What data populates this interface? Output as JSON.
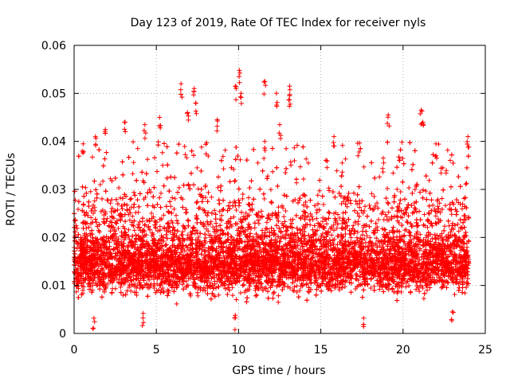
{
  "chart_data": {
    "type": "scatter",
    "title": "Day 123 of 2019, Rate Of TEC Index for receiver nyls",
    "xlabel": "GPS time / hours",
    "ylabel": "ROTI / TECUs",
    "xlim": [
      0,
      25
    ],
    "ylim": [
      0,
      0.06
    ],
    "xticks": [
      0,
      5,
      10,
      15,
      20,
      25
    ],
    "xtick_labels": [
      "0",
      "5",
      "10",
      "15",
      "20",
      "25"
    ],
    "yticks": [
      0,
      0.01,
      0.02,
      0.03,
      0.04,
      0.05,
      0.06
    ],
    "ytick_labels": [
      "0",
      "0.01",
      "0.02",
      "0.03",
      "0.04",
      "0.05",
      "0.06"
    ],
    "grid": true,
    "marker": "plus",
    "color": "#ff0000",
    "series": [
      {
        "name": "ROTI",
        "x_range": [
          0,
          24
        ],
        "typical_range": [
          0.005,
          0.025
        ],
        "notable_points": [
          {
            "x": 0.55,
            "y": 0.0395
          },
          {
            "x": 1.3,
            "y": 0.041
          },
          {
            "x": 1.9,
            "y": 0.0425
          },
          {
            "x": 3.1,
            "y": 0.044
          },
          {
            "x": 4.3,
            "y": 0.0435
          },
          {
            "x": 5.2,
            "y": 0.045
          },
          {
            "x": 6.5,
            "y": 0.052
          },
          {
            "x": 6.9,
            "y": 0.046
          },
          {
            "x": 7.3,
            "y": 0.051
          },
          {
            "x": 7.4,
            "y": 0.048
          },
          {
            "x": 8.7,
            "y": 0.0445
          },
          {
            "x": 9.8,
            "y": 0.0515
          },
          {
            "x": 10.05,
            "y": 0.0548
          },
          {
            "x": 10.15,
            "y": 0.05
          },
          {
            "x": 11.6,
            "y": 0.0525
          },
          {
            "x": 12.3,
            "y": 0.05
          },
          {
            "x": 13.1,
            "y": 0.0515
          },
          {
            "x": 13.1,
            "y": 0.0495
          },
          {
            "x": 12.5,
            "y": 0.0435
          },
          {
            "x": 15.8,
            "y": 0.041
          },
          {
            "x": 16.3,
            "y": 0.0355
          },
          {
            "x": 18.8,
            "y": 0.0365
          },
          {
            "x": 19.1,
            "y": 0.0455
          },
          {
            "x": 21.1,
            "y": 0.0465
          },
          {
            "x": 21.2,
            "y": 0.044
          },
          {
            "x": 22.0,
            "y": 0.0395
          },
          {
            "x": 23.95,
            "y": 0.041
          },
          {
            "x": 1.2,
            "y": 0.0032
          },
          {
            "x": 4.2,
            "y": 0.0042
          },
          {
            "x": 9.8,
            "y": 0.0038
          },
          {
            "x": 17.6,
            "y": 0.0032
          },
          {
            "x": 23.0,
            "y": 0.0045
          }
        ]
      }
    ]
  }
}
